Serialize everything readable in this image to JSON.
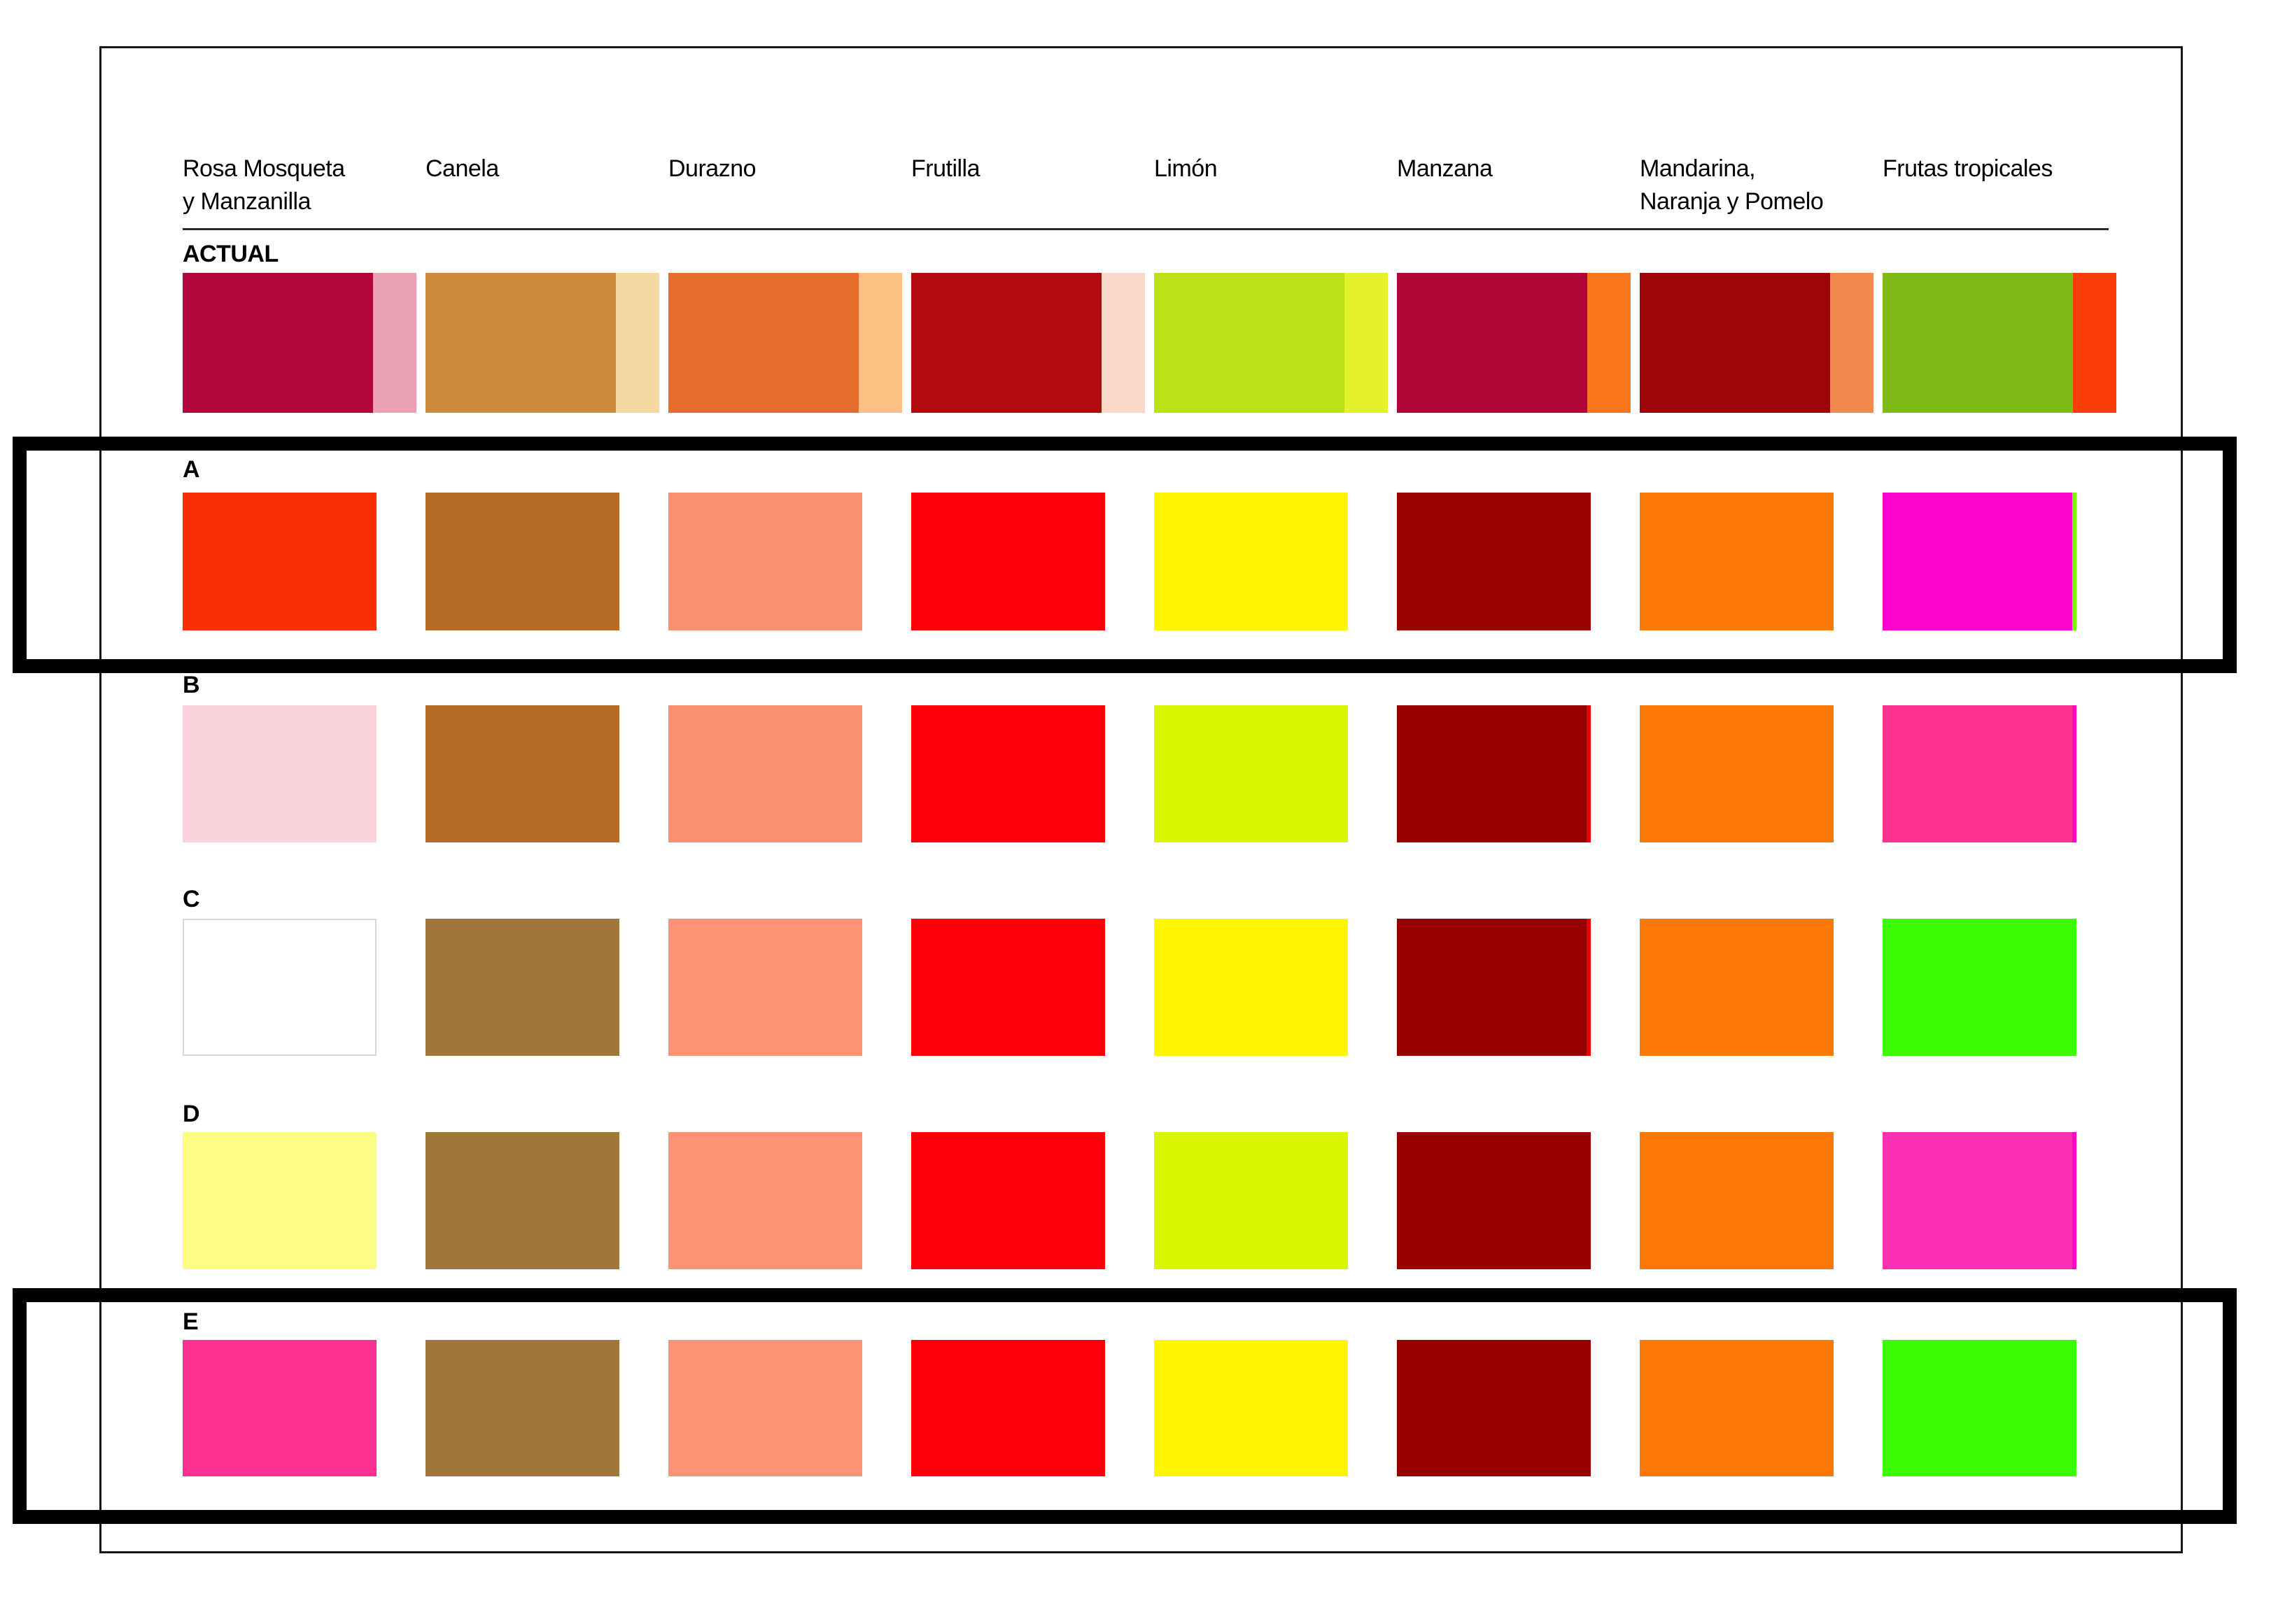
{
  "palette": {
    "columns": [
      {
        "label": "Rosa Mosqueta\ny Manzanilla"
      },
      {
        "label": "Canela"
      },
      {
        "label": "Durazno"
      },
      {
        "label": "Frutilla"
      },
      {
        "label": "Limón"
      },
      {
        "label": "Manzana"
      },
      {
        "label": "Mandarina,\nNaranja y Pomelo"
      },
      {
        "label": "Frutas tropicales"
      }
    ],
    "actual": {
      "label": "ACTUAL",
      "swatches": [
        {
          "main": "#B1053B",
          "accent": "#EAA3B4"
        },
        {
          "main": "#CC8C3B",
          "accent": "#F4D9A3"
        },
        {
          "main": "#E66E2C",
          "accent": "#FAC182"
        },
        {
          "main": "#B30A10",
          "accent": "#FBD7C8"
        },
        {
          "main": "#BCE116",
          "accent": "#E3F02B"
        },
        {
          "main": "#B10538",
          "accent": "#FA771D"
        },
        {
          "main": "#9E0508",
          "accent": "#F28A4D"
        },
        {
          "main": "#7EBB16",
          "accent": "#FA3D0B"
        }
      ]
    },
    "rows": [
      {
        "label": "A",
        "highlighted": true,
        "swatches": [
          {
            "fill": "#FB2E05"
          },
          {
            "fill": "#B56A28"
          },
          {
            "fill": "#FB9070"
          },
          {
            "fill": "#FB0008"
          },
          {
            "fill": "#FFF500"
          },
          {
            "fill": "#9A0302"
          },
          {
            "fill": "#FB7805"
          },
          {
            "fill": "#FB05CE",
            "edge": "#76F802"
          }
        ]
      },
      {
        "label": "B",
        "highlighted": false,
        "swatches": [
          {
            "fill": "#FAD2DC"
          },
          {
            "fill": "#B56A28"
          },
          {
            "fill": "#FB9070"
          },
          {
            "fill": "#FB0008"
          },
          {
            "fill": "#D9F500"
          },
          {
            "fill": "#990000",
            "edge": "#E90007"
          },
          {
            "fill": "#FB7805"
          },
          {
            "fill": "#FB3090",
            "edge": "#FB05C9"
          }
        ]
      },
      {
        "label": "C",
        "highlighted": false,
        "swatches": [
          {
            "fill": "#FFFFFF",
            "border": "#D8D8D8"
          },
          {
            "fill": "#A0763C"
          },
          {
            "fill": "#FB9374"
          },
          {
            "fill": "#FB0008"
          },
          {
            "fill": "#FFF500"
          },
          {
            "fill": "#990000",
            "edge": "#E90007"
          },
          {
            "fill": "#FB7805"
          },
          {
            "fill": "#3BFB05"
          }
        ]
      },
      {
        "label": "D",
        "highlighted": false,
        "swatches": [
          {
            "fill": "#FDFD84"
          },
          {
            "fill": "#A0763C"
          },
          {
            "fill": "#FB9374"
          },
          {
            "fill": "#FB0008"
          },
          {
            "fill": "#D9F500"
          },
          {
            "fill": "#990000"
          },
          {
            "fill": "#FB7805"
          },
          {
            "fill": "#FB30B4",
            "edge": "#FB05C9"
          }
        ]
      },
      {
        "label": "E",
        "highlighted": true,
        "swatches": [
          {
            "fill": "#FB3090"
          },
          {
            "fill": "#A0763C"
          },
          {
            "fill": "#FB9374"
          },
          {
            "fill": "#FB0008"
          },
          {
            "fill": "#FFF500"
          },
          {
            "fill": "#990000"
          },
          {
            "fill": "#FB7805"
          },
          {
            "fill": "#3BFB05"
          }
        ]
      }
    ],
    "highlight_border_color": "#000000"
  }
}
